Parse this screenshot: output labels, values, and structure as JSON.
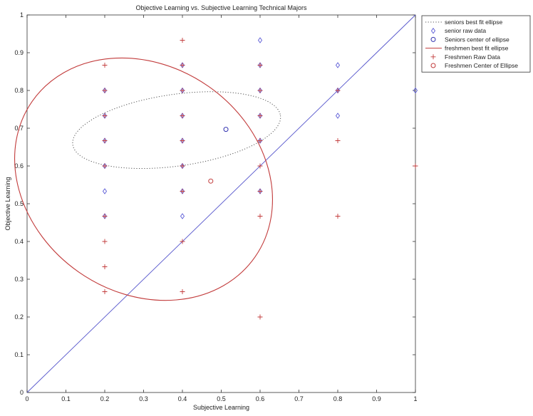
{
  "chart_data": {
    "type": "scatter",
    "title": "Objective Learning vs. Subjective Learning Technical Majors",
    "xlabel": "Subjective Learning",
    "ylabel": "Objective Learning",
    "xlim": [
      0,
      1
    ],
    "ylim": [
      0,
      1
    ],
    "xticks": [
      "0",
      "0.1",
      "0.2",
      "0.3",
      "0.4",
      "0.5",
      "0.6",
      "0.7",
      "0.8",
      "0.9",
      "1"
    ],
    "yticks": [
      "0",
      "0.1",
      "0.2",
      "0.3",
      "0.4",
      "0.5",
      "0.6",
      "0.7",
      "0.8",
      "0.9",
      "1"
    ],
    "grid": false,
    "legend_position": "top-right",
    "series": [
      {
        "name": "seniors best fit ellipse",
        "kind": "ellipse",
        "style": "dotted",
        "color": "#555555",
        "center": [
          0.385,
          0.695
        ],
        "radii": [
          0.27,
          0.095
        ],
        "rotation_deg": 8
      },
      {
        "name": "senior raw data",
        "kind": "points",
        "marker": "diamond",
        "color": "#5a5ad6",
        "x": [
          0.2,
          0.2,
          0.2,
          0.2,
          0.2,
          0.2,
          0.4,
          0.4,
          0.4,
          0.4,
          0.4,
          0.4,
          0.4,
          0.6,
          0.6,
          0.6,
          0.6,
          0.6,
          0.6,
          0.8,
          0.8,
          0.8,
          1.0
        ],
        "y": [
          0.8,
          0.733,
          0.667,
          0.6,
          0.533,
          0.467,
          0.867,
          0.8,
          0.733,
          0.667,
          0.6,
          0.533,
          0.467,
          0.933,
          0.867,
          0.8,
          0.733,
          0.667,
          0.533,
          0.867,
          0.8,
          0.733,
          0.8
        ]
      },
      {
        "name": "Seniors center of ellipse",
        "kind": "points",
        "marker": "circle",
        "color": "#3434b0",
        "x": [
          0.512
        ],
        "y": [
          0.697
        ]
      },
      {
        "name": "freshmen best fit ellipse",
        "kind": "ellipse",
        "style": "solid",
        "color": "#c23b3b",
        "center": [
          0.3,
          0.565
        ],
        "radii": [
          0.35,
          0.3
        ],
        "rotation_deg": -35
      },
      {
        "name": "Freshmen Raw Data",
        "kind": "points",
        "marker": "plus",
        "color": "#c23b3b",
        "x": [
          0.2,
          0.2,
          0.2,
          0.2,
          0.2,
          0.2,
          0.2,
          0.2,
          0.2,
          0.4,
          0.4,
          0.4,
          0.4,
          0.4,
          0.4,
          0.4,
          0.4,
          0.4,
          0.6,
          0.6,
          0.6,
          0.6,
          0.6,
          0.6,
          0.6,
          0.6,
          0.8,
          0.8,
          0.8,
          1.0
        ],
        "y": [
          0.867,
          0.8,
          0.733,
          0.667,
          0.6,
          0.467,
          0.4,
          0.333,
          0.267,
          0.933,
          0.867,
          0.8,
          0.733,
          0.667,
          0.6,
          0.533,
          0.4,
          0.267,
          0.867,
          0.8,
          0.733,
          0.667,
          0.6,
          0.533,
          0.467,
          0.2,
          0.8,
          0.667,
          0.467,
          0.6
        ]
      },
      {
        "name": "Freshmen Center of Ellipse",
        "kind": "points",
        "marker": "circle",
        "color": "#c23b3b",
        "x": [
          0.473
        ],
        "y": [
          0.56
        ]
      },
      {
        "name": "",
        "kind": "line",
        "color": "#5555cc",
        "x": [
          0,
          1
        ],
        "y": [
          0,
          1
        ]
      }
    ]
  }
}
